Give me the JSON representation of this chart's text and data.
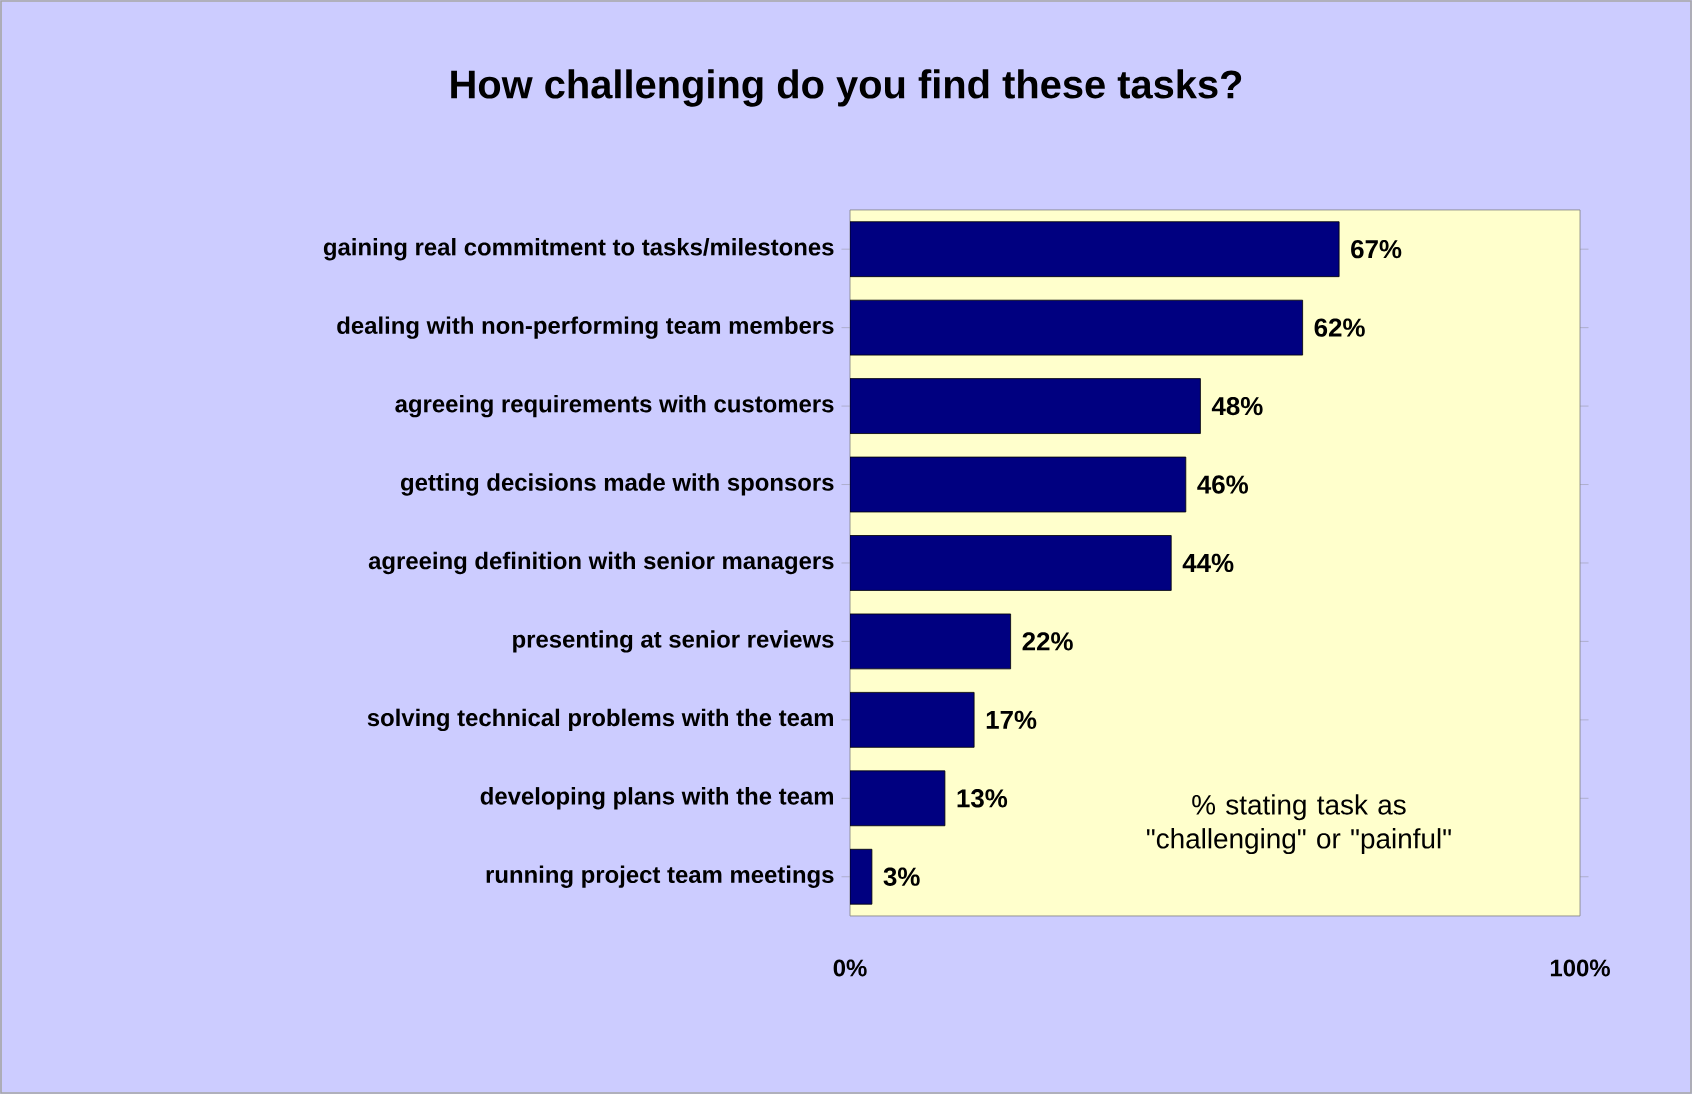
{
  "chart_data": {
    "type": "bar",
    "orientation": "horizontal",
    "title": "How challenging do you find these tasks?",
    "categories": [
      "gaining real commitment to tasks/milestones",
      "dealing with non-performing team members",
      "agreeing requirements with customers",
      "getting decisions made with sponsors",
      "agreeing definition with senior managers",
      "presenting at senior reviews",
      "solving technical problems with the team",
      "developing plans with the team",
      "running project team meetings"
    ],
    "values": [
      67,
      62,
      48,
      46,
      44,
      22,
      17,
      13,
      3
    ],
    "value_labels": [
      "67%",
      "62%",
      "48%",
      "46%",
      "44%",
      "22%",
      "17%",
      "13%",
      "3%"
    ],
    "color": "#000080",
    "xlim": [
      0,
      100
    ],
    "xticks": [
      {
        "value": 0,
        "label": "0%"
      },
      {
        "value": 100,
        "label": "100%"
      }
    ],
    "annotations": [
      "% stating task as \"challenging\" or \"painful\""
    ]
  }
}
